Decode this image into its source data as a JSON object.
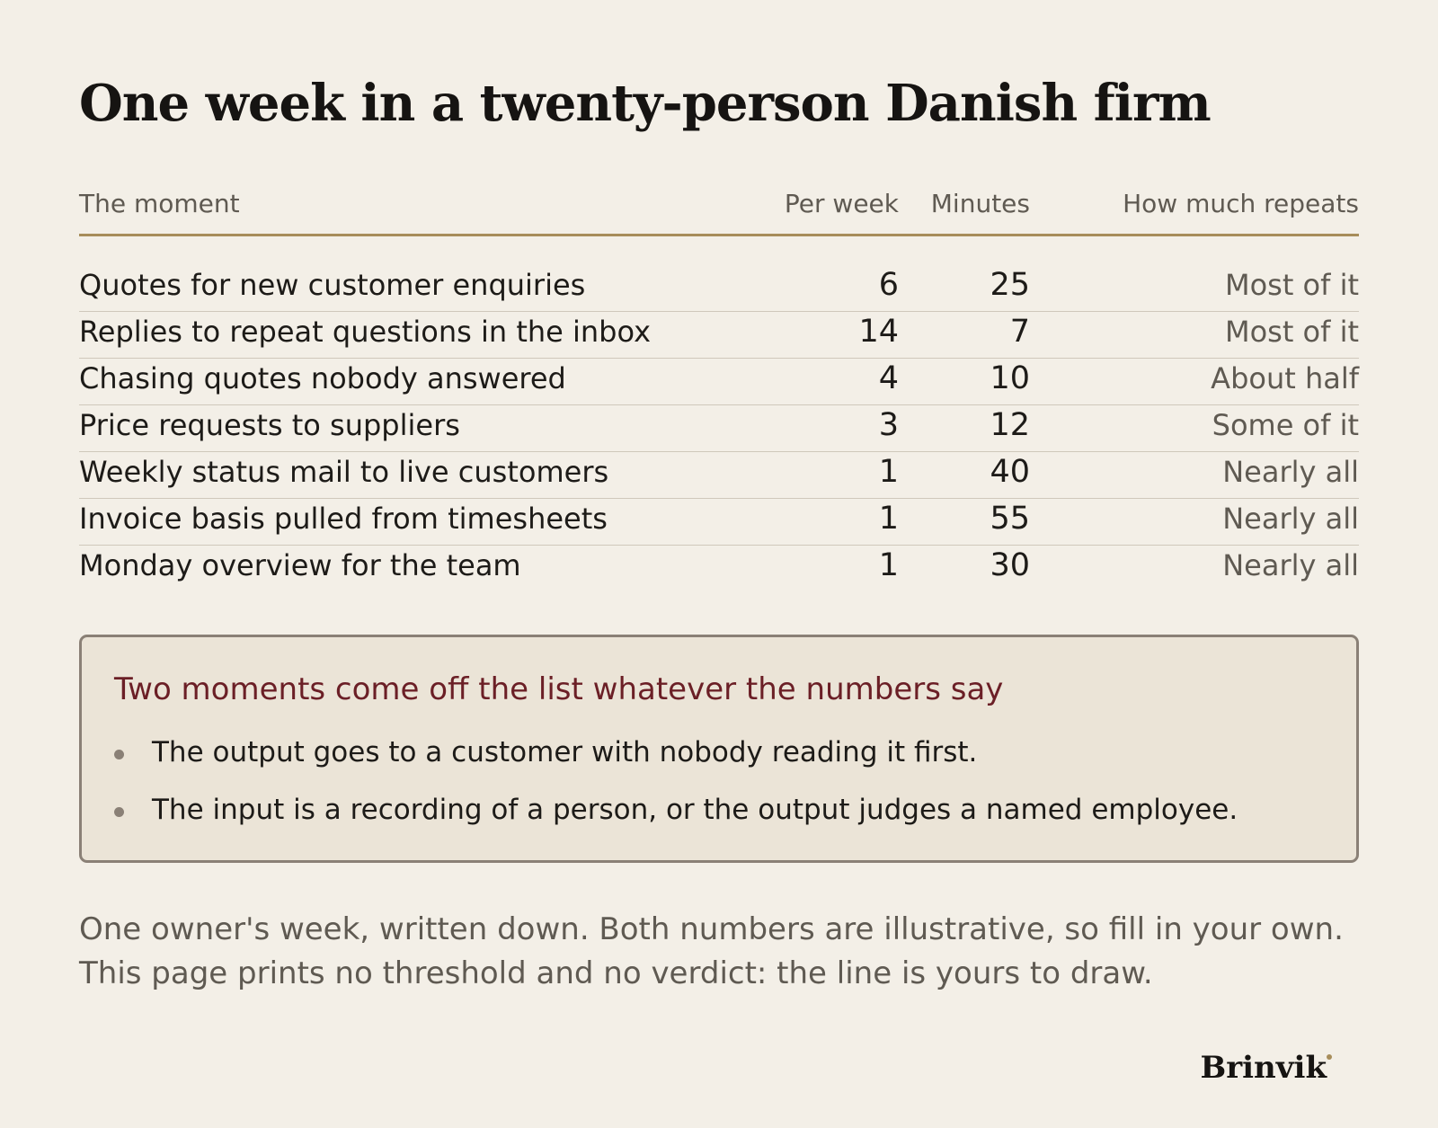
{
  "title": "One week in a twenty-person Danish firm",
  "table": {
    "headers": {
      "moment": "The moment",
      "per_week": "Per week",
      "minutes": "Minutes",
      "repeats": "How much repeats"
    },
    "rows": [
      {
        "moment": "Quotes for new customer enquiries",
        "per_week": "6",
        "minutes": "25",
        "repeats": "Most of it"
      },
      {
        "moment": "Replies to repeat questions in the inbox",
        "per_week": "14",
        "minutes": "7",
        "repeats": "Most of it"
      },
      {
        "moment": "Chasing quotes nobody answered",
        "per_week": "4",
        "minutes": "10",
        "repeats": "About half"
      },
      {
        "moment": "Price requests to suppliers",
        "per_week": "3",
        "minutes": "12",
        "repeats": "Some of it"
      },
      {
        "moment": "Weekly status mail to live customers",
        "per_week": "1",
        "minutes": "40",
        "repeats": "Nearly all"
      },
      {
        "moment": "Invoice basis pulled from timesheets",
        "per_week": "1",
        "minutes": "55",
        "repeats": "Nearly all"
      },
      {
        "moment": "Monday overview for the team",
        "per_week": "1",
        "minutes": "30",
        "repeats": "Nearly all"
      }
    ]
  },
  "callout": {
    "title": "Two moments come off the list whatever the numbers say",
    "bullets": [
      "The output goes to a customer with nobody reading it first.",
      "The input is a recording of a person, or the output judges a named employee."
    ]
  },
  "footnote": {
    "line1": "One owner's week, written down. Both numbers are illustrative, so fill in your own.",
    "line2": "This page prints no threshold and no verdict: the line is yours to draw."
  },
  "brand": "Brinvik",
  "colors": {
    "background": "#f3efe7",
    "accent_rule": "#a78d5a",
    "callout_title": "#6b1f26",
    "callout_bg": "#ebe4d7"
  }
}
